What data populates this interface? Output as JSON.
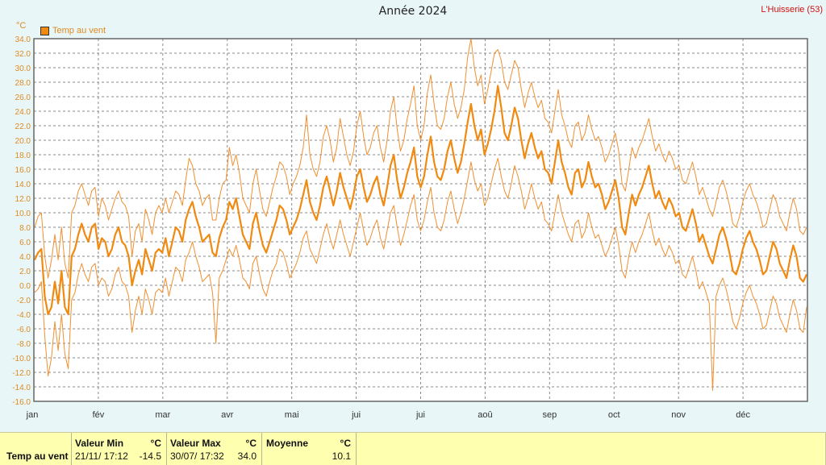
{
  "title": "Année 2024",
  "location": "L'Huisserie (53)",
  "unit": "°C",
  "legend": "Temp au vent",
  "colors": {
    "main": "#f08a10",
    "band": "#f09030",
    "grid": "#8a8a8a",
    "axis": "#e08a1f",
    "month": "#333333"
  },
  "chart_data": {
    "type": "line",
    "title": "Année 2024",
    "ylabel": "°C",
    "ylim": [
      -16,
      34
    ],
    "yticks": [
      "34.0",
      "32.0",
      "30.0",
      "28.0",
      "26.0",
      "24.0",
      "22.0",
      "20.0",
      "18.0",
      "16.0",
      "14.0",
      "12.0",
      "10.0",
      "8.0",
      "6.0",
      "4.0",
      "2.0",
      "0.0",
      "-2.0",
      "-4.0",
      "-6.0",
      "-8.0",
      "-10.0",
      "-12.0",
      "-14.0",
      "-16.0"
    ],
    "months": [
      "jan",
      "fév",
      "mar",
      "avr",
      "mai",
      "jui",
      "jui",
      "aoû",
      "sep",
      "oct",
      "nov",
      "déc"
    ],
    "grid": true,
    "series": [
      {
        "name": "Temp au vent",
        "role": "mean",
        "values": [
          3.5,
          4.5,
          5.0,
          -1.5,
          -4.0,
          -3.0,
          0.5,
          -2.5,
          2.0,
          -3.0,
          -4.0,
          4.0,
          5.0,
          7.0,
          8.5,
          7.0,
          6.0,
          8.0,
          8.5,
          5.0,
          6.5,
          6.0,
          4.0,
          5.0,
          7.0,
          8.0,
          6.0,
          5.5,
          4.0,
          0.0,
          2.0,
          3.5,
          1.5,
          5.0,
          3.5,
          2.0,
          4.5,
          5.0,
          4.5,
          6.5,
          4.0,
          6.0,
          8.0,
          7.5,
          6.0,
          9.0,
          10.5,
          11.5,
          9.5,
          8.0,
          6.0,
          6.5,
          7.0,
          4.5,
          4.0,
          6.5,
          8.0,
          9.0,
          11.5,
          10.5,
          12.0,
          9.5,
          7.0,
          6.0,
          5.0,
          8.5,
          10.0,
          7.5,
          5.5,
          4.5,
          6.0,
          7.5,
          9.0,
          11.0,
          10.5,
          9.0,
          7.0,
          8.0,
          9.0,
          10.5,
          12.5,
          14.5,
          11.5,
          10.0,
          9.0,
          11.0,
          13.5,
          15.0,
          13.0,
          11.0,
          13.0,
          15.5,
          13.5,
          12.0,
          10.5,
          12.5,
          15.0,
          16.0,
          13.5,
          11.5,
          12.5,
          14.0,
          15.0,
          12.5,
          11.0,
          13.5,
          16.5,
          18.0,
          14.5,
          12.0,
          13.5,
          15.5,
          17.0,
          19.0,
          15.0,
          13.5,
          15.0,
          18.0,
          20.5,
          17.0,
          15.0,
          14.5,
          16.0,
          18.5,
          20.0,
          17.5,
          15.5,
          17.0,
          19.5,
          22.5,
          25.0,
          22.0,
          20.0,
          21.5,
          18.0,
          19.5,
          21.5,
          24.0,
          27.5,
          24.5,
          21.0,
          20.0,
          22.0,
          24.5,
          23.0,
          20.0,
          17.5,
          19.5,
          21.0,
          19.0,
          17.5,
          18.5,
          16.0,
          15.5,
          14.0,
          17.0,
          20.0,
          17.0,
          15.5,
          13.5,
          12.5,
          15.5,
          16.0,
          13.5,
          14.5,
          17.0,
          15.0,
          13.5,
          14.0,
          12.5,
          10.5,
          11.5,
          13.0,
          14.5,
          12.0,
          8.0,
          7.0,
          10.0,
          12.5,
          11.0,
          12.5,
          13.5,
          15.0,
          16.5,
          14.0,
          12.0,
          13.0,
          11.5,
          10.5,
          12.0,
          11.0,
          9.5,
          10.0,
          8.0,
          7.5,
          9.0,
          10.5,
          8.5,
          6.0,
          7.0,
          5.5,
          4.0,
          3.0,
          5.0,
          7.0,
          8.0,
          6.5,
          4.5,
          2.0,
          1.5,
          3.0,
          5.0,
          6.5,
          7.5,
          6.0,
          5.0,
          3.5,
          1.5,
          2.0,
          4.0,
          6.0,
          5.0,
          3.0,
          2.0,
          1.0,
          3.5,
          5.5,
          4.0,
          1.0,
          0.5,
          1.5
        ]
      },
      {
        "name": "",
        "role": "max",
        "values": [
          8.0,
          9.5,
          10.0,
          4.0,
          1.0,
          3.5,
          7.0,
          3.5,
          8.0,
          3.0,
          1.0,
          10.0,
          11.0,
          13.0,
          14.0,
          12.5,
          11.0,
          13.0,
          13.5,
          9.5,
          12.0,
          11.0,
          9.0,
          10.5,
          12.0,
          13.0,
          11.5,
          11.0,
          9.5,
          4.0,
          7.5,
          8.5,
          6.0,
          10.5,
          9.0,
          7.0,
          10.0,
          11.0,
          10.0,
          12.0,
          10.0,
          11.5,
          13.0,
          12.5,
          11.0,
          14.5,
          17.5,
          16.5,
          14.0,
          13.0,
          11.0,
          12.0,
          12.5,
          9.0,
          9.0,
          12.0,
          14.0,
          14.5,
          19.0,
          16.5,
          18.0,
          15.5,
          12.0,
          11.0,
          10.0,
          14.0,
          16.0,
          13.0,
          10.5,
          9.5,
          11.5,
          13.5,
          15.0,
          17.0,
          16.5,
          15.0,
          12.5,
          14.0,
          15.0,
          16.5,
          19.0,
          23.5,
          18.0,
          16.0,
          15.0,
          17.0,
          20.5,
          22.0,
          20.0,
          17.0,
          19.0,
          23.0,
          20.5,
          18.0,
          16.5,
          18.5,
          22.0,
          24.0,
          20.5,
          18.0,
          19.0,
          21.0,
          22.0,
          19.0,
          17.0,
          20.0,
          24.0,
          26.0,
          21.5,
          18.5,
          20.0,
          23.0,
          25.0,
          27.5,
          22.0,
          20.0,
          22.0,
          26.5,
          29.0,
          25.0,
          22.0,
          21.5,
          23.0,
          26.0,
          28.0,
          25.0,
          23.0,
          24.5,
          27.0,
          31.5,
          34.0,
          30.0,
          27.5,
          29.0,
          25.0,
          27.0,
          29.5,
          32.0,
          32.5,
          31.0,
          28.0,
          27.0,
          29.0,
          31.0,
          30.0,
          27.0,
          24.5,
          26.5,
          28.0,
          26.0,
          24.5,
          25.5,
          23.0,
          22.5,
          21.0,
          24.0,
          27.0,
          23.5,
          22.0,
          20.0,
          19.0,
          22.0,
          22.5,
          20.0,
          21.0,
          23.5,
          21.5,
          20.0,
          20.5,
          19.0,
          17.0,
          18.0,
          19.5,
          21.0,
          18.5,
          14.0,
          13.0,
          16.0,
          19.0,
          17.5,
          19.0,
          20.0,
          21.5,
          23.0,
          20.5,
          18.5,
          19.5,
          18.0,
          17.0,
          18.5,
          17.5,
          16.0,
          16.5,
          14.5,
          14.0,
          15.5,
          17.0,
          15.0,
          12.5,
          13.5,
          12.0,
          10.5,
          9.5,
          11.5,
          13.5,
          14.5,
          13.0,
          11.0,
          8.5,
          8.0,
          9.5,
          11.5,
          13.0,
          14.0,
          12.5,
          11.5,
          10.0,
          8.0,
          8.5,
          10.5,
          12.5,
          11.5,
          9.5,
          8.5,
          7.5,
          10.0,
          12.0,
          10.5,
          7.5,
          7.0,
          8.0
        ]
      },
      {
        "name": "",
        "role": "min",
        "values": [
          -1.0,
          -0.5,
          0.5,
          -7.0,
          -12.5,
          -10.0,
          -5.0,
          -9.0,
          -4.0,
          -9.5,
          -11.5,
          -2.0,
          -1.0,
          1.5,
          3.0,
          1.5,
          0.5,
          2.5,
          3.0,
          0.0,
          1.0,
          0.5,
          -1.5,
          -0.5,
          1.5,
          2.5,
          0.5,
          0.0,
          -1.5,
          -6.5,
          -3.5,
          -1.5,
          -4.0,
          -0.5,
          -2.0,
          -4.0,
          -1.0,
          -0.5,
          -1.0,
          1.0,
          -1.5,
          0.5,
          2.5,
          2.0,
          0.5,
          3.5,
          4.5,
          6.0,
          4.0,
          2.5,
          0.5,
          1.0,
          1.5,
          -1.0,
          -8.0,
          1.0,
          2.0,
          3.5,
          5.0,
          4.0,
          5.5,
          3.5,
          1.0,
          0.5,
          -0.5,
          3.0,
          4.0,
          1.5,
          -0.5,
          -1.5,
          0.5,
          2.0,
          3.0,
          5.0,
          4.5,
          3.0,
          1.0,
          2.0,
          3.0,
          4.5,
          6.5,
          7.5,
          5.0,
          4.0,
          3.0,
          5.0,
          7.0,
          8.5,
          6.5,
          5.0,
          7.0,
          9.0,
          7.0,
          5.5,
          4.0,
          6.0,
          8.0,
          10.0,
          7.5,
          5.5,
          6.5,
          8.0,
          9.0,
          6.5,
          5.0,
          7.5,
          10.0,
          11.0,
          8.0,
          5.5,
          7.0,
          9.0,
          11.0,
          12.5,
          9.0,
          7.5,
          9.0,
          11.5,
          13.5,
          10.0,
          8.0,
          7.5,
          9.0,
          11.5,
          13.0,
          10.5,
          8.5,
          10.0,
          12.0,
          14.5,
          17.0,
          14.5,
          13.0,
          14.0,
          11.0,
          12.0,
          14.0,
          16.0,
          17.5,
          15.0,
          13.0,
          12.0,
          14.0,
          16.5,
          15.0,
          13.0,
          10.5,
          12.0,
          14.0,
          12.0,
          10.5,
          11.5,
          9.0,
          8.5,
          7.5,
          10.0,
          12.5,
          10.0,
          8.5,
          7.0,
          6.0,
          8.5,
          9.0,
          6.5,
          7.5,
          10.0,
          8.0,
          6.5,
          7.0,
          5.5,
          4.0,
          5.0,
          6.5,
          8.0,
          5.5,
          2.0,
          1.0,
          4.0,
          6.0,
          4.5,
          6.0,
          7.0,
          8.5,
          10.0,
          7.5,
          5.5,
          6.5,
          5.0,
          4.0,
          5.5,
          4.5,
          3.0,
          3.5,
          1.5,
          1.0,
          2.5,
          4.0,
          2.0,
          -0.5,
          0.5,
          -1.0,
          -2.5,
          -14.5,
          -1.5,
          0.0,
          1.0,
          -0.5,
          -2.5,
          -5.0,
          -6.0,
          -4.5,
          -2.5,
          -1.0,
          0.0,
          -1.5,
          -2.5,
          -4.0,
          -6.0,
          -5.5,
          -3.5,
          -1.5,
          -2.5,
          -4.5,
          -5.5,
          -6.5,
          -4.0,
          -2.0,
          -3.5,
          -6.0,
          -6.5,
          -3.0
        ]
      }
    ]
  },
  "footer": {
    "row_label": "Temp au vent",
    "min": {
      "header": "Valeur Min",
      "unit": "°C",
      "date": "21/11/  17:12",
      "value": "-14.5"
    },
    "max": {
      "header": "Valeur Max",
      "unit": "°C",
      "date": "30/07/  17:32",
      "value": "34.0"
    },
    "avg": {
      "header": "Moyenne",
      "unit": "°C",
      "value": "10.1"
    }
  }
}
